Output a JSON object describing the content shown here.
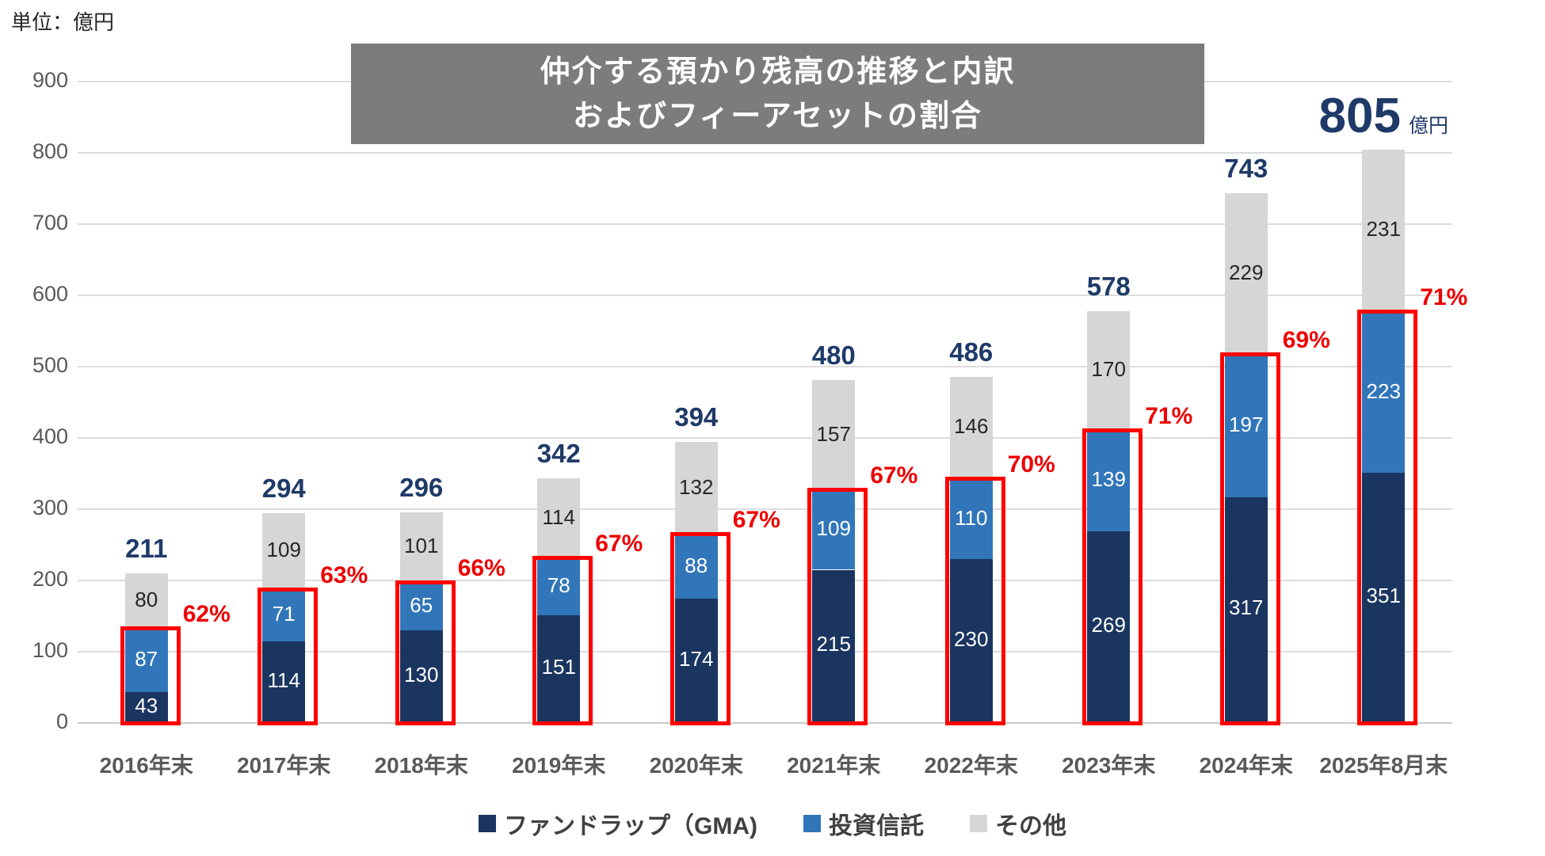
{
  "unit_note": "単位：億円",
  "title": {
    "line1": "仲介する預かり残高の推移と内訳",
    "line2": "およびフィーアセットの割合"
  },
  "chart_data": {
    "type": "bar",
    "stacked": true,
    "title": "仲介する預かり残高の推移と内訳 およびフィーアセットの割合",
    "unit": "億円",
    "categories": [
      "2016年末",
      "2017年末",
      "2018年末",
      "2019年末",
      "2020年末",
      "2021年末",
      "2022年末",
      "2023年末",
      "2024年末",
      "2025年8月末"
    ],
    "series": [
      {
        "name": "ファンドラップ（GMA)",
        "color": "#1A3560",
        "label_color": "#FFFFFF",
        "values": [
          43,
          114,
          130,
          151,
          174,
          215,
          230,
          269,
          317,
          351
        ]
      },
      {
        "name": "投資信託",
        "color": "#3176B9",
        "label_color": "#FFFFFF",
        "values": [
          87,
          71,
          65,
          78,
          88,
          109,
          110,
          139,
          197,
          223
        ]
      },
      {
        "name": "その他",
        "color": "#D6D6D6",
        "label_color": "#262626",
        "values": [
          80,
          109,
          101,
          114,
          132,
          157,
          146,
          170,
          229,
          231
        ]
      }
    ],
    "totals": [
      211,
      294,
      296,
      342,
      394,
      480,
      486,
      578,
      743,
      805
    ],
    "fee_asset_pct": [
      "62%",
      "63%",
      "66%",
      "67%",
      "67%",
      "67%",
      "70%",
      "71%",
      "69%",
      "71%"
    ],
    "highlight_total_index": 9,
    "highlight_total_suffix": "億円",
    "ylim": [
      0,
      900
    ],
    "ytick_step": 100,
    "grid": true,
    "legend_position": "bottom"
  },
  "colors": {
    "title_bg": "#7C7C7C",
    "title_text": "#FFFFFF",
    "total_label": "#1E3A68",
    "highlight_red": "#FF0000",
    "axis_label": "#595959",
    "gridline": "#DCDCDC",
    "legend_text": "#404040"
  }
}
